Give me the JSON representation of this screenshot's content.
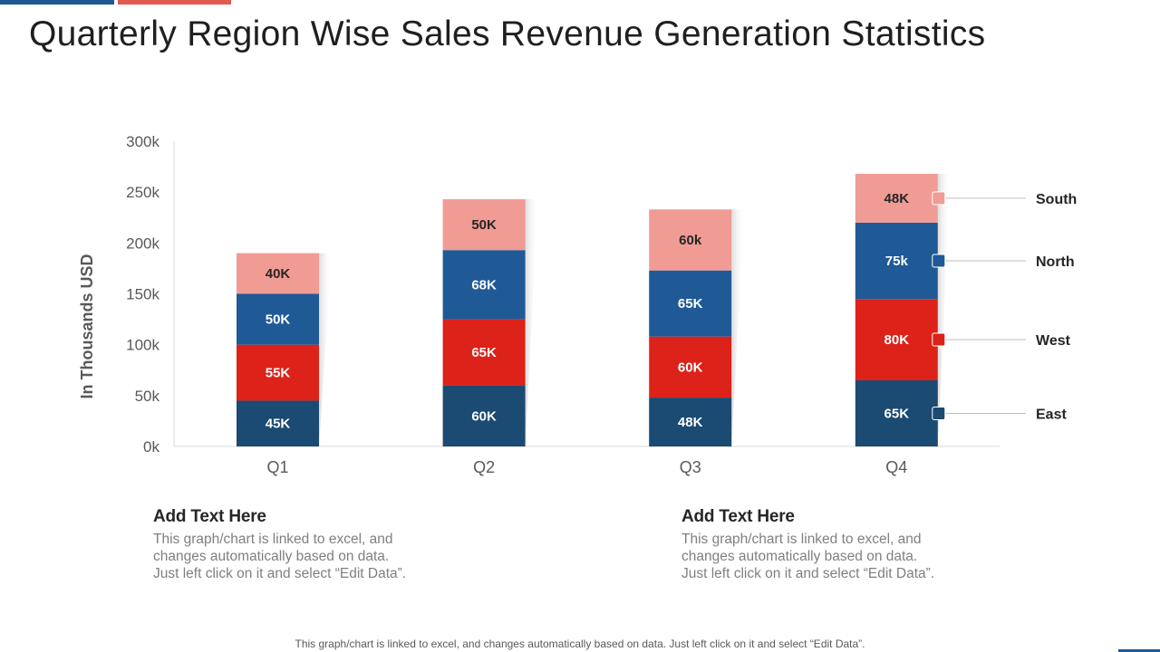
{
  "title": "Quarterly Region Wise Sales Revenue Generation Statistics",
  "colors": {
    "East": "#1b4a72",
    "West": "#dc2219",
    "North": "#1f5a96",
    "South": "#f19b95",
    "accent_blue": "#1f5a96",
    "accent_red": "#e05a4f"
  },
  "chart_data": {
    "type": "bar",
    "stacked": true,
    "title": "",
    "xlabel": "",
    "ylabel": "In Thousands USD",
    "ylim": [
      0,
      300
    ],
    "yticks": [
      {
        "value": 0,
        "label": "0k"
      },
      {
        "value": 50,
        "label": "50k"
      },
      {
        "value": 100,
        "label": "100k"
      },
      {
        "value": 150,
        "label": "150k"
      },
      {
        "value": 200,
        "label": "200k"
      },
      {
        "value": 250,
        "label": "250k"
      },
      {
        "value": 300,
        "label": "300k"
      }
    ],
    "categories": [
      "Q1",
      "Q2",
      "Q3",
      "Q4"
    ],
    "series": [
      {
        "name": "East",
        "values": [
          45,
          60,
          48,
          65
        ],
        "labels": [
          "45K",
          "60K",
          "48K",
          "65K"
        ]
      },
      {
        "name": "West",
        "values": [
          55,
          65,
          60,
          80
        ],
        "labels": [
          "55K",
          "65K",
          "60K",
          "80K"
        ]
      },
      {
        "name": "North",
        "values": [
          50,
          68,
          65,
          75
        ],
        "labels": [
          "50K",
          "68K",
          "65K",
          "75k"
        ]
      },
      {
        "name": "South",
        "values": [
          40,
          50,
          60,
          48
        ],
        "labels": [
          "40K",
          "50K",
          "60k",
          "48K"
        ]
      }
    ],
    "legend": {
      "placement": "right",
      "order": [
        "South",
        "North",
        "West",
        "East"
      ]
    },
    "grid": false
  },
  "notes": [
    {
      "heading": "Add Text Here",
      "body": "This graph/chart is linked to excel, and\nchanges automatically based on data.\nJust left click on it and select “Edit Data”."
    },
    {
      "heading": "Add Text Here",
      "body": "This graph/chart is linked to excel, and\nchanges automatically based on data.\nJust left click on it and select “Edit Data”."
    }
  ],
  "footer": "This graph/chart is linked to excel, and changes automatically based on data. Just left click on it and select “Edit Data”."
}
